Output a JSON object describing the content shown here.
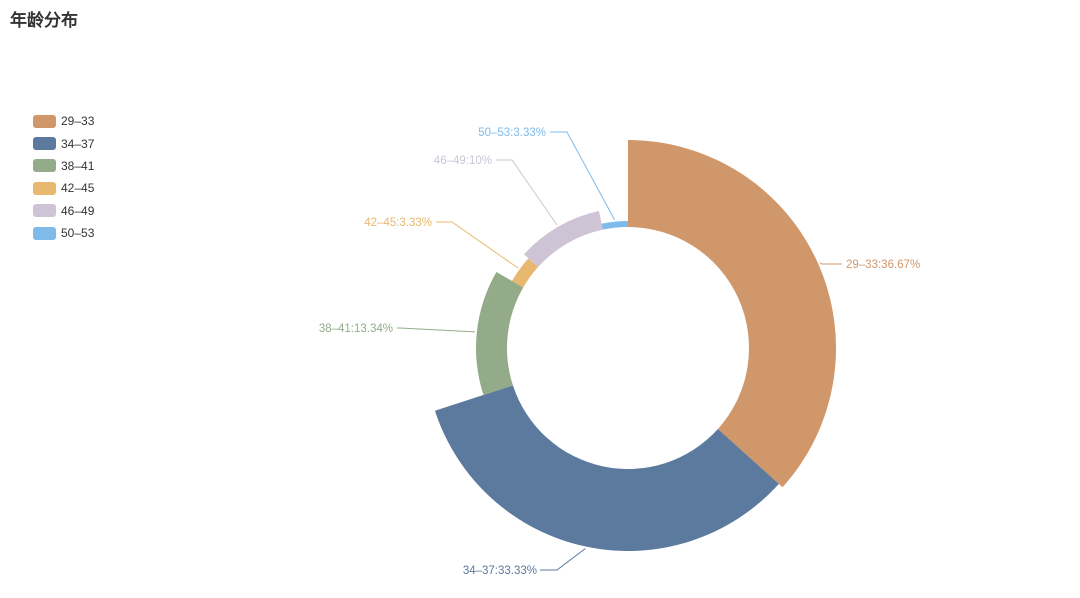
{
  "chart_data": {
    "type": "pie",
    "title": "年龄分布",
    "categories": [
      "29–33",
      "34–37",
      "38–41",
      "42–45",
      "46–49",
      "50–53"
    ],
    "values": [
      36.67,
      33.33,
      13.34,
      3.33,
      10,
      3.33
    ],
    "labels": [
      "29–33:36.67%",
      "34–37:33.33%",
      "38–41:13.34%",
      "42–45:3.33%",
      "46–49:10%",
      "50–53:3.33%"
    ],
    "colors": [
      "#d0976b",
      "#5b7a9d",
      "#93ab89",
      "#e8b870",
      "#cec4d5",
      "#7fbbea"
    ],
    "legend_position": "top-left",
    "rose_type": "radius"
  }
}
